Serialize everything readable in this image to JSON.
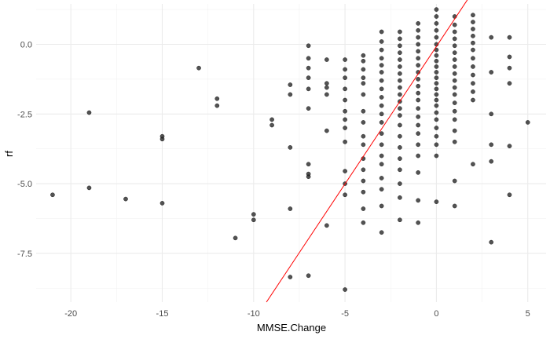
{
  "chart_data": {
    "type": "scatter",
    "xlabel": "MMSE.Change",
    "ylabel": "rf",
    "xlim": [
      -21.9,
      6.0
    ],
    "ylim": [
      -9.25,
      1.45
    ],
    "x_ticks": [
      -20,
      -15,
      -10,
      -5,
      0,
      5
    ],
    "x_minor": [
      -17.5,
      -12.5,
      -7.5,
      -2.5,
      2.5
    ],
    "y_ticks": [
      0.0,
      -2.5,
      -5.0,
      -7.5
    ],
    "y_tick_labels": [
      "0.0",
      "-2.5",
      "-5.0",
      "-7.5"
    ],
    "y_minor": [
      1.25,
      -1.25,
      -3.75,
      -6.25,
      -8.75
    ],
    "grid": true,
    "point_color": "#1a1a1a",
    "line_color": "#ff0000",
    "fit_line": {
      "x": [
        -9.3,
        1.85
      ],
      "y": [
        -9.25,
        1.75
      ]
    },
    "points": [
      [
        -21,
        -5.4
      ],
      [
        -19,
        -2.45
      ],
      [
        -19,
        -5.15
      ],
      [
        -17,
        -5.55
      ],
      [
        -15,
        -3.3
      ],
      [
        -15,
        -3.4
      ],
      [
        -15,
        -5.7
      ],
      [
        -13,
        -0.85
      ],
      [
        -12,
        -1.95
      ],
      [
        -12,
        -2.2
      ],
      [
        -11,
        -6.95
      ],
      [
        -10,
        -6.1
      ],
      [
        -10,
        -6.3
      ],
      [
        -9,
        -2.7
      ],
      [
        -9,
        -2.9
      ],
      [
        -8,
        -1.45
      ],
      [
        -8,
        -1.8
      ],
      [
        -8,
        -3.7
      ],
      [
        -8,
        -5.9
      ],
      [
        -8,
        -8.35
      ],
      [
        -7,
        -0.05
      ],
      [
        -7,
        -0.5
      ],
      [
        -7,
        -0.85
      ],
      [
        -7,
        -1.2
      ],
      [
        -7,
        -1.6
      ],
      [
        -7,
        -2.3
      ],
      [
        -7,
        -4.3
      ],
      [
        -7,
        -4.65
      ],
      [
        -7,
        -4.75
      ],
      [
        -7,
        -8.3
      ],
      [
        -6,
        -0.55
      ],
      [
        -6,
        -1.4
      ],
      [
        -6,
        -1.55
      ],
      [
        -6,
        -1.8
      ],
      [
        -6,
        -3.1
      ],
      [
        -6,
        -6.5
      ],
      [
        -5,
        -0.55
      ],
      [
        -5,
        -0.9
      ],
      [
        -5,
        -1.2
      ],
      [
        -5,
        -1.6
      ],
      [
        -5,
        -2.0
      ],
      [
        -5,
        -2.4
      ],
      [
        -5,
        -2.7
      ],
      [
        -5,
        -3.0
      ],
      [
        -5,
        -3.5
      ],
      [
        -5,
        -4.55
      ],
      [
        -5,
        -5.0
      ],
      [
        -5,
        -5.4
      ],
      [
        -5,
        -8.8
      ],
      [
        -4,
        -0.4
      ],
      [
        -4,
        -0.6
      ],
      [
        -4,
        -0.9
      ],
      [
        -4,
        -1.2
      ],
      [
        -4,
        -1.4
      ],
      [
        -4,
        -1.8
      ],
      [
        -4,
        -2.4
      ],
      [
        -4,
        -2.8
      ],
      [
        -4,
        -3.3
      ],
      [
        -4,
        -3.6
      ],
      [
        -4,
        -4.1
      ],
      [
        -4,
        -4.5
      ],
      [
        -4,
        -4.9
      ],
      [
        -4,
        -5.3
      ],
      [
        -4,
        -5.9
      ],
      [
        -4,
        -6.4
      ],
      [
        -3,
        0.45
      ],
      [
        -3,
        0.1
      ],
      [
        -3,
        -0.2
      ],
      [
        -3,
        -0.5
      ],
      [
        -3,
        -0.75
      ],
      [
        -3,
        -1.0
      ],
      [
        -3,
        -1.3
      ],
      [
        -3,
        -1.6
      ],
      [
        -3,
        -1.9
      ],
      [
        -3,
        -2.2
      ],
      [
        -3,
        -2.5
      ],
      [
        -3,
        -2.8
      ],
      [
        -3,
        -3.2
      ],
      [
        -3,
        -3.6
      ],
      [
        -3,
        -4.0
      ],
      [
        -3,
        -4.3
      ],
      [
        -3,
        -4.8
      ],
      [
        -3,
        -5.2
      ],
      [
        -3,
        -5.8
      ],
      [
        -3,
        -6.75
      ],
      [
        -2,
        0.45
      ],
      [
        -2,
        0.2
      ],
      [
        -2,
        -0.05
      ],
      [
        -2,
        -0.3
      ],
      [
        -2,
        -0.55
      ],
      [
        -2,
        -0.8
      ],
      [
        -2,
        -1.05
      ],
      [
        -2,
        -1.3
      ],
      [
        -2,
        -1.55
      ],
      [
        -2,
        -1.8
      ],
      [
        -2,
        -2.05
      ],
      [
        -2,
        -2.3
      ],
      [
        -2,
        -2.55
      ],
      [
        -2,
        -2.9
      ],
      [
        -2,
        -3.3
      ],
      [
        -2,
        -3.7
      ],
      [
        -2,
        -4.1
      ],
      [
        -2,
        -4.5
      ],
      [
        -2,
        -5.0
      ],
      [
        -2,
        -5.5
      ],
      [
        -2,
        -6.3
      ],
      [
        -1,
        0.75
      ],
      [
        -1,
        0.5
      ],
      [
        -1,
        0.25
      ],
      [
        -1,
        0.0
      ],
      [
        -1,
        -0.25
      ],
      [
        -1,
        -0.5
      ],
      [
        -1,
        -0.75
      ],
      [
        -1,
        -1.0
      ],
      [
        -1,
        -1.25
      ],
      [
        -1,
        -1.5
      ],
      [
        -1,
        -1.75
      ],
      [
        -1,
        -2.0
      ],
      [
        -1,
        -2.3
      ],
      [
        -1,
        -2.6
      ],
      [
        -1,
        -2.9
      ],
      [
        -1,
        -3.2
      ],
      [
        -1,
        -3.6
      ],
      [
        -1,
        -4.0
      ],
      [
        -1,
        -4.6
      ],
      [
        -1,
        -5.6
      ],
      [
        -1,
        -6.4
      ],
      [
        0,
        1.25
      ],
      [
        0,
        1.0
      ],
      [
        0,
        0.75
      ],
      [
        0,
        0.5
      ],
      [
        0,
        0.25
      ],
      [
        0,
        0.0
      ],
      [
        0,
        -0.2
      ],
      [
        0,
        -0.4
      ],
      [
        0,
        -0.6
      ],
      [
        0,
        -0.8
      ],
      [
        0,
        -1.0
      ],
      [
        0,
        -1.2
      ],
      [
        0,
        -1.4
      ],
      [
        0,
        -1.6
      ],
      [
        0,
        -1.8
      ],
      [
        0,
        -2.0
      ],
      [
        0,
        -2.2
      ],
      [
        0,
        -2.45
      ],
      [
        0,
        -2.7
      ],
      [
        0,
        -3.0
      ],
      [
        0,
        -3.3
      ],
      [
        0,
        -3.6
      ],
      [
        0,
        -4.0
      ],
      [
        0,
        -5.65
      ],
      [
        1,
        1.0
      ],
      [
        1,
        0.7
      ],
      [
        1,
        0.45
      ],
      [
        1,
        0.2
      ],
      [
        1,
        -0.05
      ],
      [
        1,
        -0.3
      ],
      [
        1,
        -0.55
      ],
      [
        1,
        -0.8
      ],
      [
        1,
        -1.05
      ],
      [
        1,
        -1.3
      ],
      [
        1,
        -1.55
      ],
      [
        1,
        -1.8
      ],
      [
        1,
        -2.1
      ],
      [
        1,
        -2.4
      ],
      [
        1,
        -2.7
      ],
      [
        1,
        -3.1
      ],
      [
        1,
        -3.5
      ],
      [
        1,
        -4.9
      ],
      [
        1,
        -5.8
      ],
      [
        2,
        1.05
      ],
      [
        2,
        0.8
      ],
      [
        2,
        0.55
      ],
      [
        2,
        0.3
      ],
      [
        2,
        0.05
      ],
      [
        2,
        -0.2
      ],
      [
        2,
        -0.5
      ],
      [
        2,
        -0.8
      ],
      [
        2,
        -1.1
      ],
      [
        2,
        -1.4
      ],
      [
        2,
        -1.7
      ],
      [
        2,
        -2.0
      ],
      [
        2,
        -4.3
      ],
      [
        3,
        0.25
      ],
      [
        3,
        -1.0
      ],
      [
        3,
        -2.5
      ],
      [
        3,
        -3.6
      ],
      [
        3,
        -4.2
      ],
      [
        3,
        -7.1
      ],
      [
        4,
        0.25
      ],
      [
        4,
        -0.45
      ],
      [
        4,
        -0.85
      ],
      [
        4,
        -1.4
      ],
      [
        4,
        -3.65
      ],
      [
        4,
        -5.4
      ],
      [
        5,
        -2.8
      ]
    ]
  }
}
